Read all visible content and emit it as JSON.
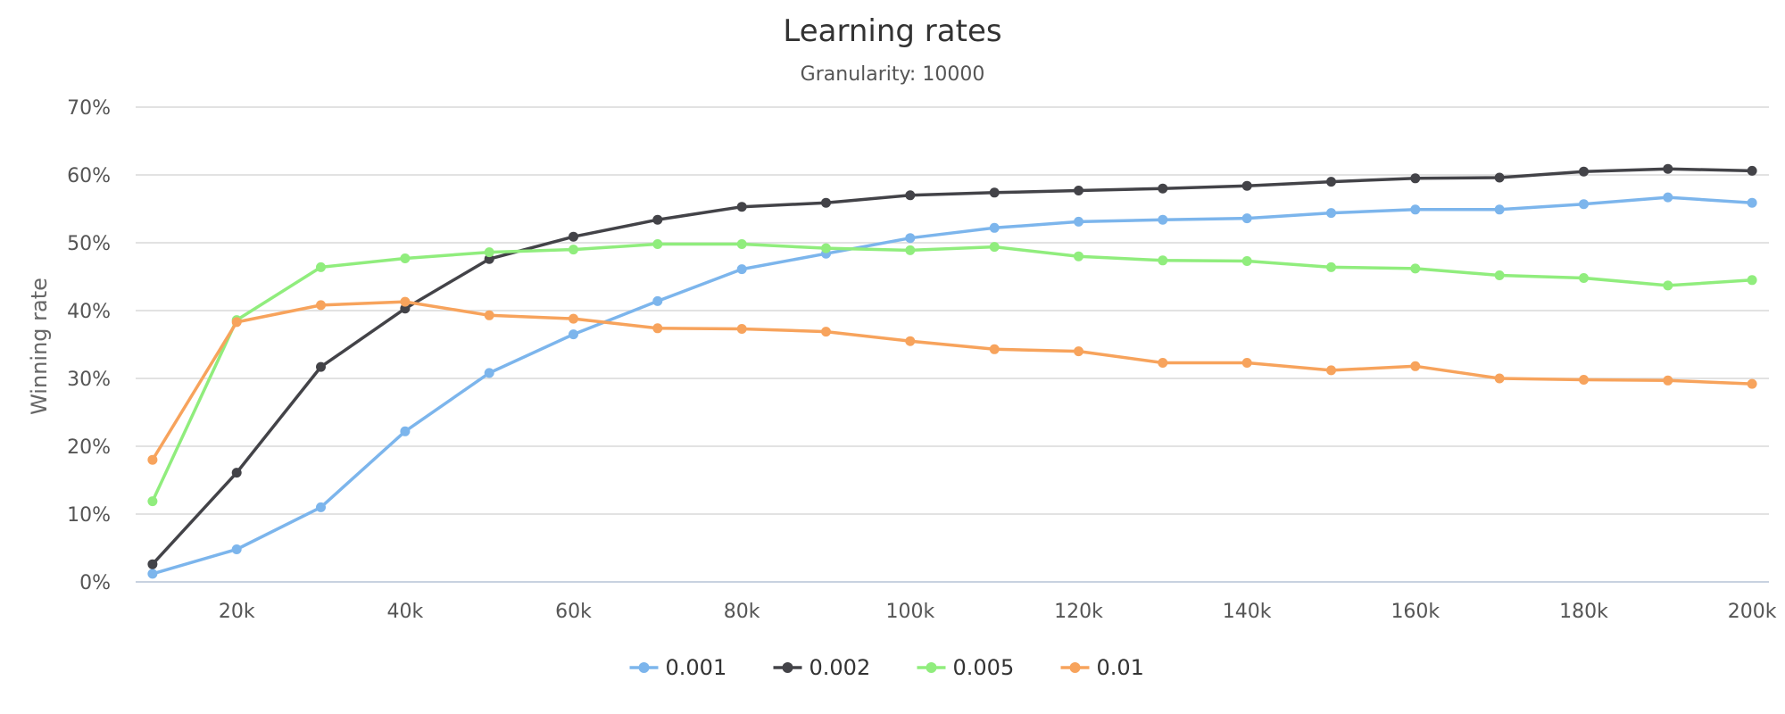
{
  "chart_data": {
    "type": "line",
    "title": "Learning rates",
    "subtitle": "Granularity: 10000",
    "ylabel": "Winning rate",
    "xlabel": "",
    "x": [
      10000,
      20000,
      30000,
      40000,
      50000,
      60000,
      70000,
      80000,
      90000,
      100000,
      110000,
      120000,
      130000,
      140000,
      150000,
      160000,
      170000,
      180000,
      190000,
      200000
    ],
    "xlim": [
      8000,
      202000
    ],
    "ylim": [
      0,
      70
    ],
    "x_ticks": [
      {
        "value": 20000,
        "label": "20k"
      },
      {
        "value": 40000,
        "label": "40k"
      },
      {
        "value": 60000,
        "label": "60k"
      },
      {
        "value": 80000,
        "label": "80k"
      },
      {
        "value": 100000,
        "label": "100k"
      },
      {
        "value": 120000,
        "label": "120k"
      },
      {
        "value": 140000,
        "label": "140k"
      },
      {
        "value": 160000,
        "label": "160k"
      },
      {
        "value": 180000,
        "label": "180k"
      },
      {
        "value": 200000,
        "label": "200k"
      }
    ],
    "y_ticks": [
      {
        "value": 0,
        "label": "0%"
      },
      {
        "value": 10,
        "label": "10%"
      },
      {
        "value": 20,
        "label": "20%"
      },
      {
        "value": 30,
        "label": "30%"
      },
      {
        "value": 40,
        "label": "40%"
      },
      {
        "value": 50,
        "label": "50%"
      },
      {
        "value": 60,
        "label": "60%"
      },
      {
        "value": 70,
        "label": "70%"
      }
    ],
    "grid": true,
    "legend_position": "bottom-center",
    "series": [
      {
        "name": "0.001",
        "color": "#7cb5ec",
        "values": [
          1.2,
          4.8,
          11.0,
          22.2,
          30.8,
          36.5,
          41.4,
          46.1,
          48.4,
          50.7,
          52.2,
          53.1,
          53.4,
          53.6,
          54.4,
          54.9,
          54.9,
          55.7,
          56.7,
          55.9
        ]
      },
      {
        "name": "0.002",
        "color": "#434348",
        "values": [
          2.6,
          16.1,
          31.7,
          40.3,
          47.6,
          50.9,
          53.4,
          55.3,
          55.9,
          57.0,
          57.4,
          57.7,
          58.0,
          58.4,
          59.0,
          59.5,
          59.6,
          60.5,
          60.9,
          60.6
        ]
      },
      {
        "name": "0.005",
        "color": "#90ed7d",
        "values": [
          11.9,
          38.6,
          46.4,
          47.7,
          48.6,
          49.0,
          49.8,
          49.8,
          49.2,
          48.9,
          49.4,
          48.0,
          47.4,
          47.3,
          46.4,
          46.2,
          45.2,
          44.8,
          43.7,
          44.5
        ]
      },
      {
        "name": "0.01",
        "color": "#f7a35c",
        "values": [
          18.0,
          38.3,
          40.8,
          41.3,
          39.3,
          38.8,
          37.4,
          37.3,
          36.9,
          35.5,
          34.3,
          34.0,
          32.3,
          32.3,
          31.2,
          31.8,
          30.0,
          29.8,
          29.7,
          29.2
        ]
      }
    ]
  }
}
